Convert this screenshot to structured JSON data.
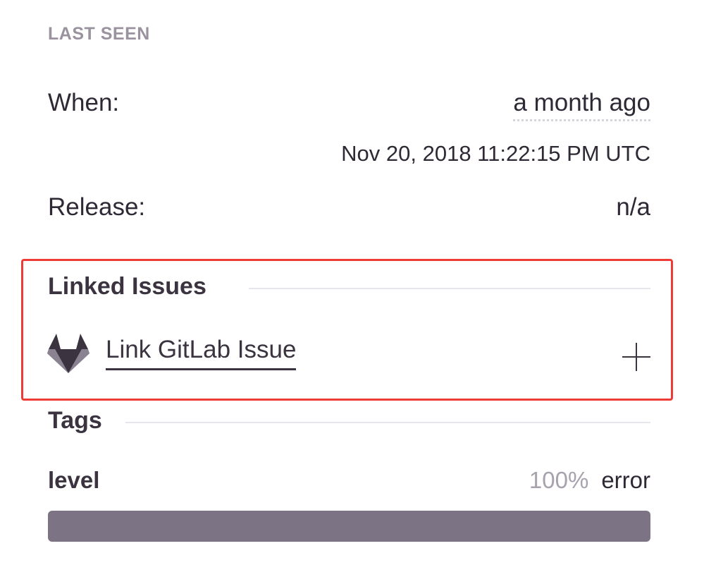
{
  "last_seen": {
    "section_label": "LAST SEEN",
    "when_label": "When:",
    "when_value": "a month ago",
    "timestamp": "Nov 20, 2018 11:22:15 PM UTC",
    "release_label": "Release:",
    "release_value": "n/a"
  },
  "linked_issues": {
    "heading": "Linked Issues",
    "link_label": "Link GitLab Issue",
    "icon": "gitlab-icon",
    "add_icon": "plus-icon",
    "highlight_color": "#ef3b36"
  },
  "tags": {
    "heading": "Tags",
    "items": [
      {
        "key": "level",
        "percent": "100%",
        "value": "error",
        "fraction": 1.0
      }
    ],
    "bar_color": "#7c7385"
  }
}
